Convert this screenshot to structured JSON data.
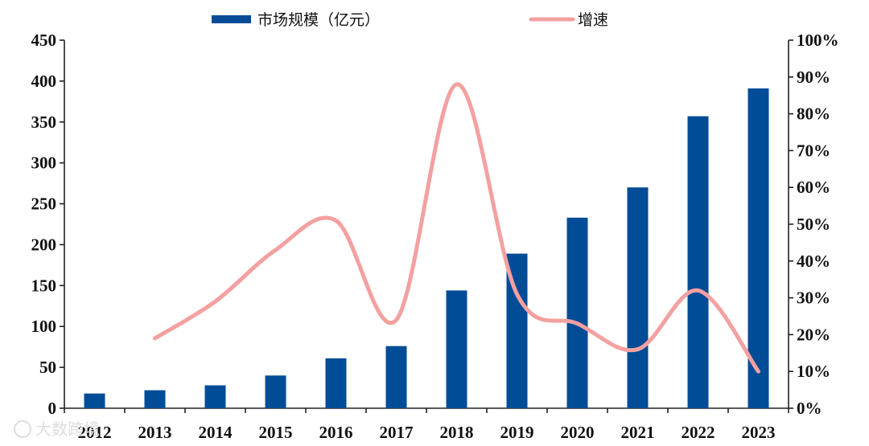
{
  "chart_data": {
    "type": "bar",
    "categories": [
      "2012",
      "2013",
      "2014",
      "2015",
      "2016",
      "2017",
      "2018",
      "2019",
      "2020",
      "2021",
      "2022",
      "2023"
    ],
    "series": [
      {
        "name": "市场规模（亿元）",
        "type": "bar",
        "axis": "left",
        "color": "#004c97",
        "values": [
          18,
          22,
          28,
          40,
          61,
          76,
          144,
          189,
          233,
          270,
          357,
          391
        ]
      },
      {
        "name": "增速",
        "type": "line",
        "axis": "right",
        "color": "#f4a0a0",
        "values": [
          null,
          19,
          29,
          43,
          51,
          24,
          88,
          31,
          23,
          16,
          32,
          10
        ]
      }
    ],
    "y_left": {
      "min": 0,
      "max": 450,
      "ticks": [
        "0",
        "50",
        "100",
        "150",
        "200",
        "250",
        "300",
        "350",
        "400",
        "450"
      ]
    },
    "y_right": {
      "min": 0,
      "max": 100,
      "unit": "%",
      "ticks": [
        "0%",
        "10%",
        "20%",
        "30%",
        "40%",
        "50%",
        "60%",
        "70%",
        "80%",
        "90%",
        "100%"
      ]
    },
    "title": "",
    "xlabel": "",
    "ylabel": "",
    "grid": false,
    "legend_position": "top"
  },
  "watermark": "大数跨境"
}
